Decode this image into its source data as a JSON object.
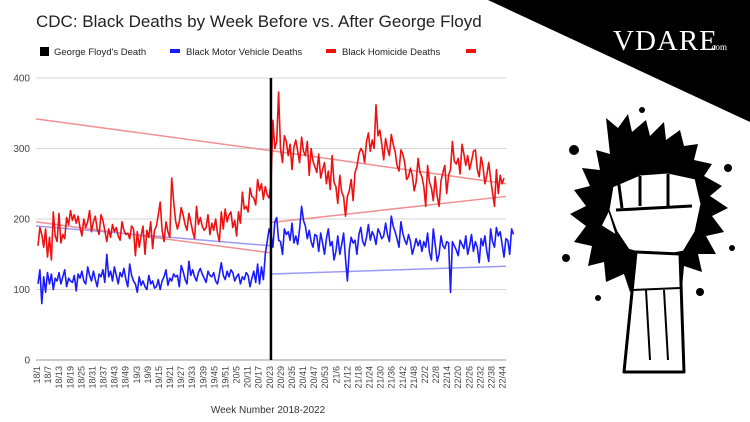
{
  "brand": {
    "name": "VDARE",
    "suffix": ".com"
  },
  "chart_data": {
    "type": "line",
    "title": "CDC: Black Deaths by Week Before vs. After George Floyd",
    "xlabel": "Week Number 2018-2022",
    "ylabel": "",
    "ylim": [
      0,
      400
    ],
    "yticks": [
      0,
      100,
      200,
      300,
      400
    ],
    "grid": true,
    "legend_position": "top",
    "legend": [
      {
        "label": "George Floyd's Death",
        "color": "#000000",
        "marker": "square"
      },
      {
        "label": "Black Motor Vehicle Deaths",
        "color": "#1a1aff",
        "marker": "dash"
      },
      {
        "label": "Black Homicide Deaths",
        "color": "#ee1111",
        "marker": "dash"
      },
      {
        "label": "",
        "color": "#ee1111",
        "marker": "dash"
      }
    ],
    "x_tick_labels": [
      "18/1",
      "18/7",
      "18/13",
      "18/19",
      "18/25",
      "18/31",
      "18/37",
      "18/43",
      "18/49",
      "19/3",
      "19/9",
      "19/15",
      "19/21",
      "19/27",
      "19/33",
      "19/39",
      "19/45",
      "19/51",
      "20/5",
      "20/11",
      "20/17",
      "20/23",
      "20/29",
      "20/35",
      "20/41",
      "20/47",
      "20/53",
      "21/6",
      "21/12",
      "21/18",
      "21/24",
      "21/30",
      "21/36",
      "21/42",
      "21/48",
      "22/2",
      "22/8",
      "22/14",
      "22/20",
      "22/26",
      "22/32",
      "22/38",
      "22/44"
    ],
    "event_line": {
      "label": "George Floyd's Death",
      "week": "20/22"
    },
    "series": [
      {
        "name": "Black Homicide Deaths",
        "color": "#ee1111",
        "values": [
          162,
          188,
          178,
          160,
          186,
          146,
          174,
          142,
          210,
          176,
          168,
          208,
          166,
          178,
          172,
          202,
          192,
          212,
          198,
          206,
          194,
          204,
          188,
          176,
          200,
          188,
          196,
          212,
          182,
          196,
          204,
          186,
          178,
          206,
          198,
          184,
          168,
          186,
          174,
          192,
          182,
          188,
          176,
          170,
          196,
          184,
          178,
          180,
          172,
          190,
          186,
          148,
          182,
          160,
          176,
          190,
          150,
          184,
          174,
          196,
          158,
          184,
          190,
          206,
          224,
          184,
          168,
          196,
          182,
          174,
          258,
          226,
          198,
          186,
          196,
          216,
          206,
          192,
          184,
          208,
          196,
          182,
          172,
          218,
          192,
          202,
          190,
          184,
          188,
          206,
          178,
          194,
          184,
          200,
          180,
          168,
          210,
          186,
          214,
          196,
          206,
          210,
          188,
          198,
          176,
          210,
          194,
          238,
          214,
          218,
          210,
          244,
          232,
          230,
          220,
          256,
          240,
          250,
          228,
          246,
          234,
          230,
          250,
          340,
          300,
          310,
          380,
          300,
          280,
          318,
          310,
          290,
          306,
          270,
          302,
          312,
          296,
          280,
          316,
          296,
          290,
          310,
          262,
          300,
          282,
          274,
          266,
          292,
          258,
          270,
          280,
          250,
          268,
          242,
          290,
          252,
          246,
          222,
          262,
          238,
          232,
          204,
          232,
          240,
          256,
          226,
          266,
          274,
          292,
          300,
          296,
          280,
          310,
          322,
          296,
          312,
          300,
          362,
          318,
          326,
          306,
          284,
          314,
          300,
          290,
          320,
          306,
          296,
          276,
          268,
          298,
          292,
          280,
          256,
          260,
          272,
          262,
          240,
          252,
          286,
          266,
          260,
          246,
          218,
          276,
          252,
          244,
          226,
          260,
          232,
          218,
          254,
          266,
          276,
          236,
          262,
          270,
          310,
          282,
          278,
          286,
          264,
          306,
          292,
          276,
          290,
          270,
          282,
          296,
          298,
          270,
          260,
          288,
          274,
          250,
          262,
          280,
          258,
          238,
          218,
          270,
          236,
          262,
          250,
          258
        ]
      },
      {
        "name": "Black Motor Vehicle Deaths",
        "color": "#1a1aff",
        "values": [
          108,
          128,
          80,
          118,
          96,
          124,
          108,
          122,
          100,
          116,
          112,
          124,
          108,
          118,
          128,
          104,
          116,
          112,
          110,
          120,
          98,
          122,
          116,
          126,
          112,
          108,
          132,
          120,
          112,
          126,
          114,
          104,
          122,
          118,
          128,
          110,
          150,
          118,
          126,
          112,
          132,
          120,
          108,
          124,
          118,
          130,
          114,
          104,
          136,
          120,
          112,
          108,
          96,
          118,
          106,
          112,
          104,
          100,
          120,
          108,
          112,
          102,
          104,
          114,
          100,
          112,
          118,
          128,
          106,
          116,
          112,
          122,
          118,
          120,
          104,
          134,
          126,
          114,
          108,
          140,
          120,
          128,
          118,
          112,
          124,
          130,
          122,
          116,
          110,
          126,
          120,
          118,
          124,
          112,
          108,
          122,
          138,
          120,
          114,
          126,
          118,
          128,
          124,
          112,
          118,
          122,
          108,
          118,
          114,
          124,
          120,
          104,
          116,
          126,
          110,
          136,
          108,
          132,
          114,
          150,
          168,
          186,
          178,
          160,
          196,
          202,
          170,
          168,
          150,
          186,
          178,
          182,
          170,
          194,
          166,
          176,
          164,
          186,
          218,
          198,
          190,
          172,
          184,
          168,
          160,
          178,
          176,
          154,
          180,
          166,
          150,
          172,
          186,
          162,
          168,
          142,
          154,
          176,
          150,
          164,
          180,
          144,
          112,
          156,
          174,
          166,
          170,
          150,
          178,
          188,
          168,
          162,
          174,
          192,
          170,
          182,
          176,
          164,
          186,
          180,
          172,
          176,
          194,
          178,
          168,
          204,
          190,
          182,
          172,
          160,
          196,
          180,
          170,
          164,
          178,
          168,
          150,
          160,
          172,
          162,
          170,
          154,
          168,
          160,
          180,
          152,
          142,
          186,
          164,
          140,
          150,
          176,
          162,
          158,
          168,
          166,
          96,
          168,
          162,
          156,
          148,
          170,
          164,
          158,
          176,
          150,
          162,
          178,
          154,
          168,
          160,
          138,
          172,
          162,
          176,
          154,
          140,
          186,
          168,
          160,
          188,
          176,
          182,
          164,
          146,
          172,
          170,
          150,
          186,
          178
        ]
      },
      {
        "name": "",
        "color": "#f09090",
        "values": [
          342,
          297
        ]
      },
      {
        "name": "",
        "color": "#f09090",
        "values": [
          196,
          152
        ]
      },
      {
        "name": "",
        "color": "#9b9bf5",
        "values": [
          190,
          162
        ]
      },
      {
        "name": "",
        "color": "#f09090",
        "values": [
          297,
          250
        ]
      },
      {
        "name": "",
        "color": "#f09090",
        "values": [
          195,
          232
        ]
      },
      {
        "name": "",
        "color": "#9b9bf5",
        "values": [
          122,
          133
        ]
      }
    ]
  }
}
